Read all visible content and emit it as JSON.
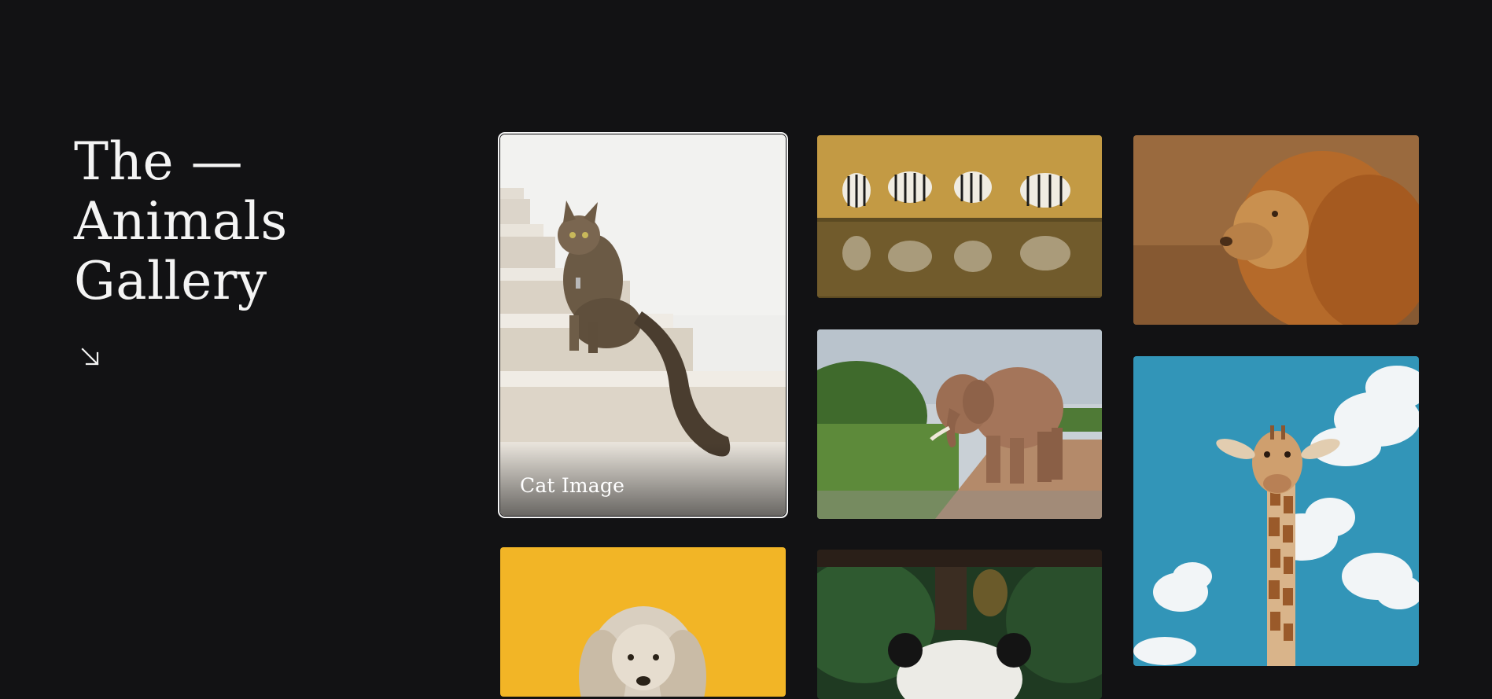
{
  "hero": {
    "title_line1": "The —",
    "title_line2": "Animals",
    "title_line3": "Gallery",
    "arrow_icon": "arrow-down-right-icon"
  },
  "gallery": {
    "items": [
      {
        "name": "cat",
        "caption": "Cat Image",
        "active": true
      },
      {
        "name": "zebras"
      },
      {
        "name": "lion"
      },
      {
        "name": "elephant"
      },
      {
        "name": "giraffe"
      },
      {
        "name": "dog"
      },
      {
        "name": "panda"
      }
    ]
  },
  "colors": {
    "background": "#121214",
    "text": "#f2f2f2",
    "active_outline": "#f5f5f5"
  }
}
